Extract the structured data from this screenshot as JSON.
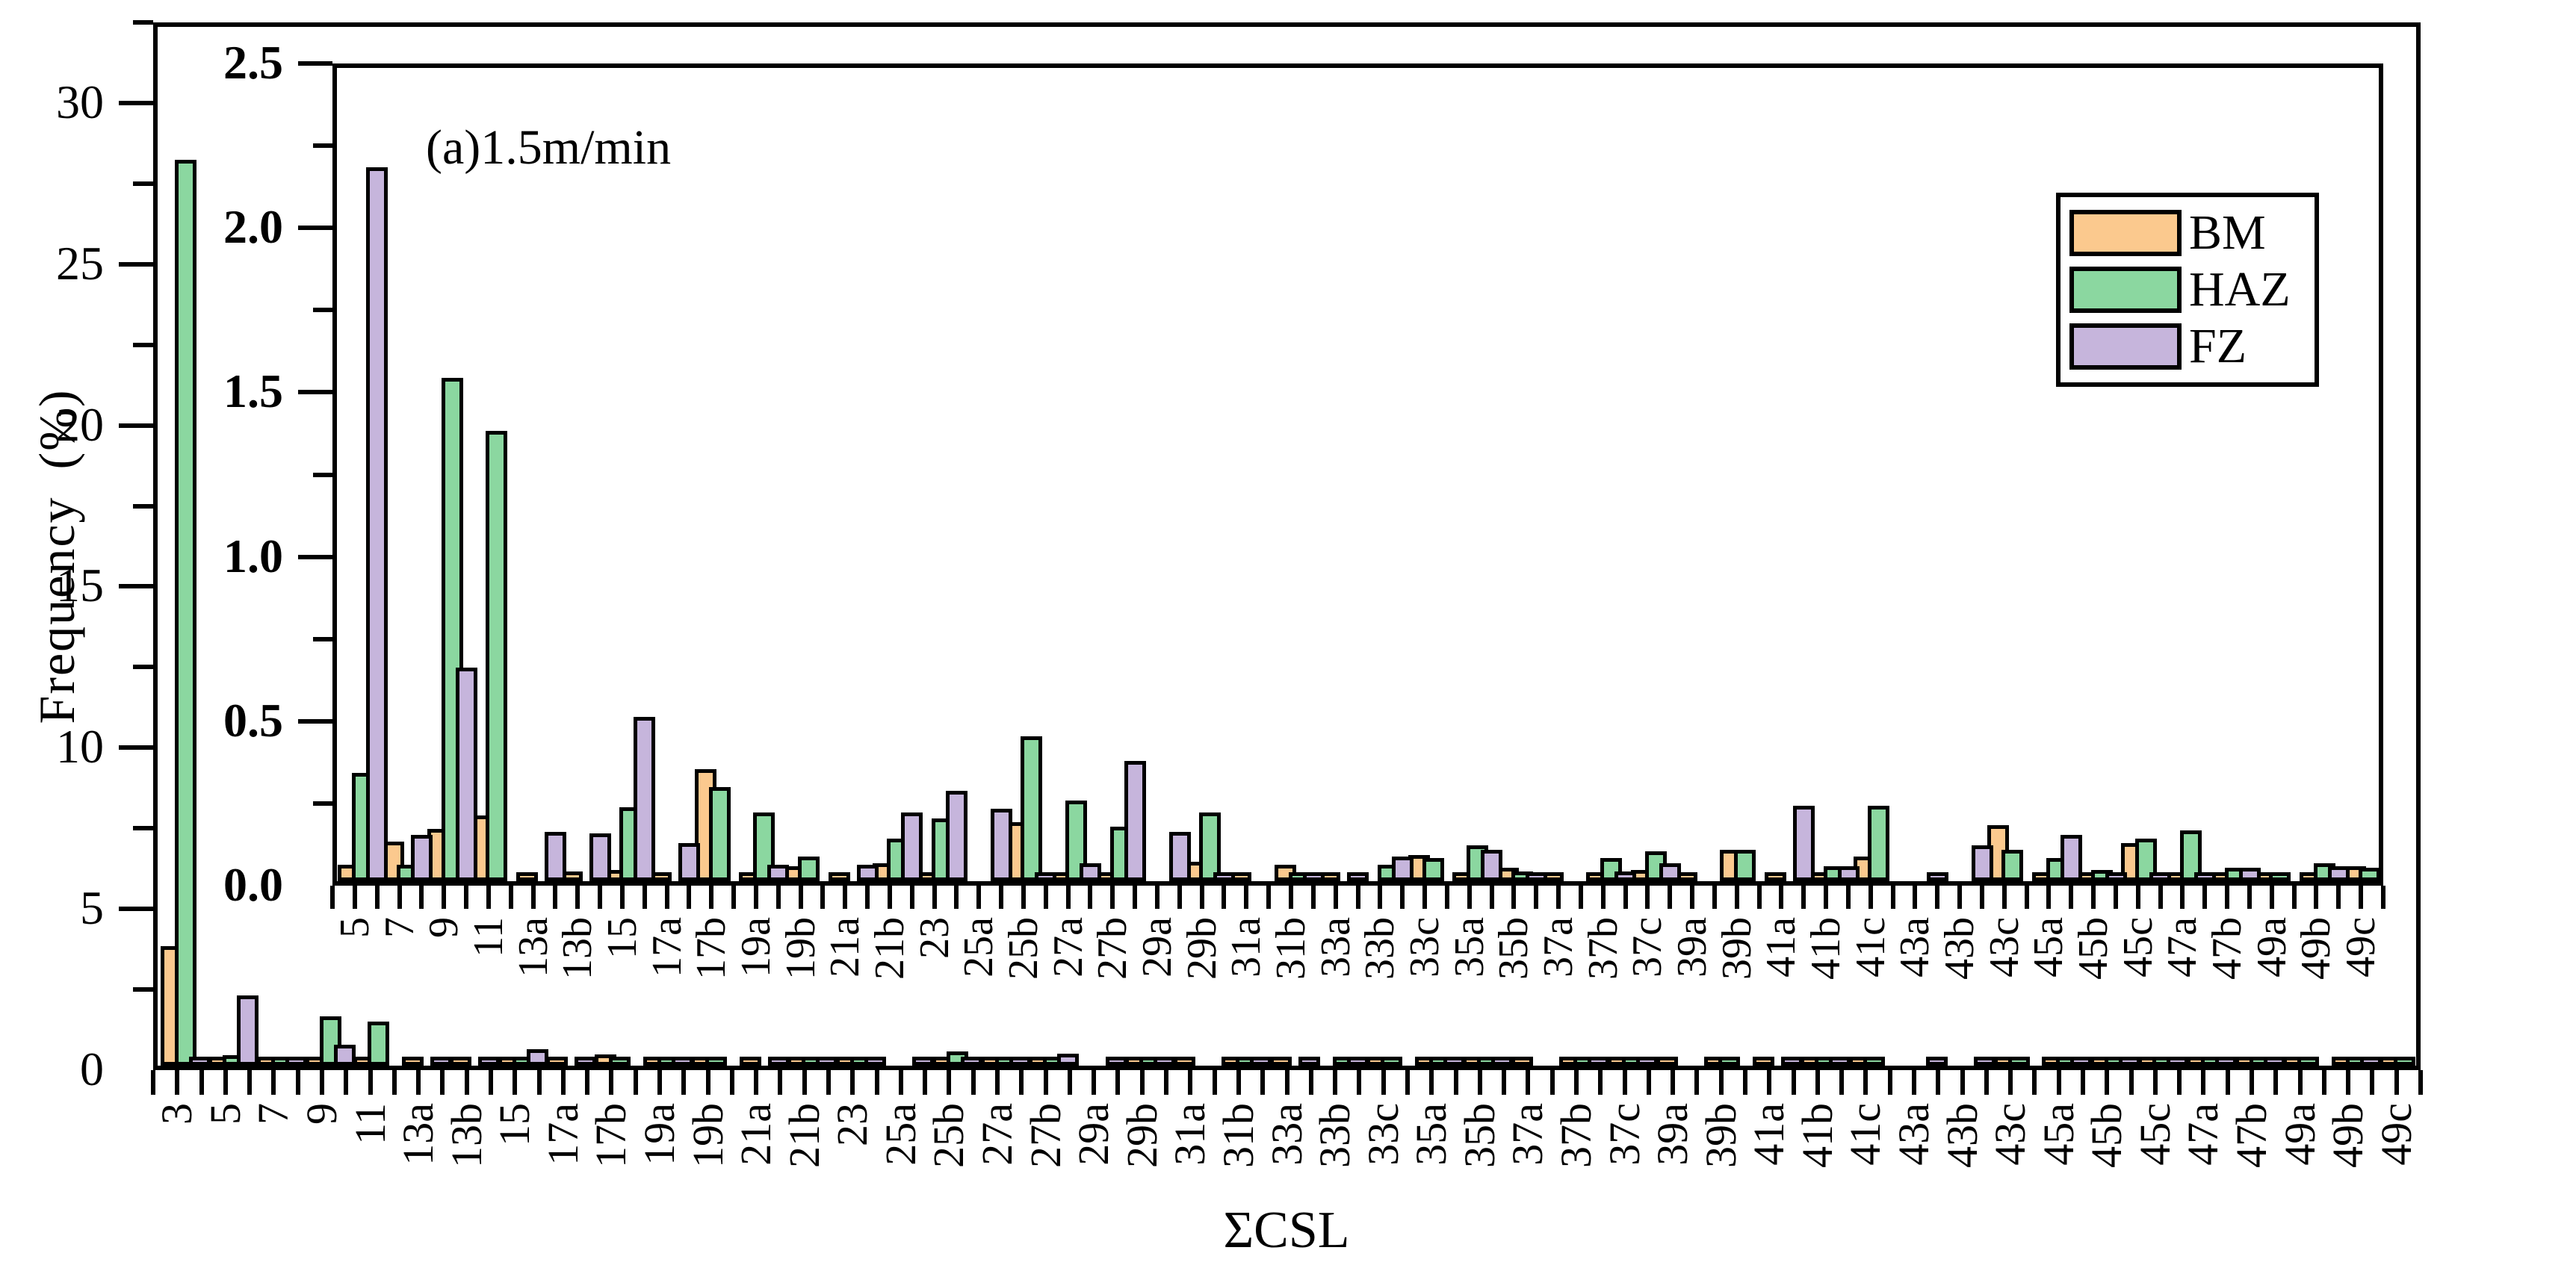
{
  "figure": {
    "annotation": "(a)1.5m/min",
    "x_axis_title": "ΣCSL",
    "y_axis_title": "Frequency (%)"
  },
  "legend": {
    "entries": [
      {
        "label": "BM",
        "color": "#fbc98e"
      },
      {
        "label": "HAZ",
        "color": "#8bd7a0"
      },
      {
        "label": "FZ",
        "color": "#c6b5dc"
      }
    ],
    "position": "upper-right"
  },
  "chart_data": [
    {
      "name": "main",
      "type": "bar",
      "title": "",
      "xlabel": "ΣCSL",
      "ylabel": "Frequency (%)",
      "ylim": [
        0,
        32.5
      ],
      "grid": false,
      "yticks": {
        "values": [
          0,
          5,
          10,
          15,
          20,
          25,
          30
        ],
        "labels": [
          "0",
          "5",
          "10",
          "15",
          "20",
          "25",
          "30"
        ],
        "minor_step": 2.5
      },
      "categories": [
        "3",
        "5",
        "7",
        "9",
        "11",
        "13a",
        "13b",
        "15",
        "17a",
        "17b",
        "19a",
        "19b",
        "21a",
        "21b",
        "23",
        "25a",
        "25b",
        "27a",
        "27b",
        "29a",
        "29b",
        "31a",
        "31b",
        "33a",
        "33b",
        "33c",
        "35a",
        "35b",
        "37a",
        "37b",
        "37c",
        "39a",
        "39b",
        "41a",
        "41b",
        "41c",
        "43a",
        "43b",
        "43c",
        "45a",
        "45b",
        "45c",
        "47a",
        "47b",
        "49a",
        "49b",
        "49c"
      ],
      "series": [
        {
          "name": "BM",
          "values": [
            3.7,
            0.05,
            0.12,
            0.16,
            0.2,
            0.01,
            0.03,
            0.035,
            0.005,
            0.34,
            0.02,
            0.045,
            0.01,
            0.055,
            0.02,
            0,
            0.18,
            0.015,
            0.01,
            0,
            0.06,
            0.005,
            0.05,
            0.005,
            0,
            0.08,
            0.015,
            0.04,
            0.005,
            0.005,
            0.035,
            0.005,
            0.095,
            0.005,
            0.01,
            0.075,
            0,
            0,
            0.17,
            0.005,
            0.015,
            0.115,
            0.025,
            0.01,
            0.005,
            0.005,
            0.045
          ]
        },
        {
          "name": "HAZ",
          "values": [
            28.1,
            0.33,
            0.05,
            1.53,
            1.37,
            0,
            0,
            0.225,
            0,
            0.285,
            0.21,
            0.075,
            0,
            0.13,
            0.19,
            0,
            0.44,
            0.245,
            0.165,
            0,
            0.21,
            0,
            0.015,
            0,
            0.05,
            0.07,
            0.11,
            0.03,
            0,
            0.07,
            0.09,
            0,
            0.095,
            0,
            0.045,
            0.23,
            0,
            0,
            0.095,
            0.07,
            0.035,
            0.13,
            0.155,
            0.04,
            0.005,
            0.055,
            0.04
          ]
        },
        {
          "name": "FZ",
          "values": [
            0.15,
            2.17,
            0.14,
            0.65,
            0,
            0.15,
            0.145,
            0.5,
            0.115,
            0,
            0.05,
            0,
            0.05,
            0.21,
            0.275,
            0.22,
            0.005,
            0.055,
            0.365,
            0.15,
            0.015,
            0,
            0.005,
            0.025,
            0.075,
            0,
            0.095,
            0.01,
            0,
            0.03,
            0.055,
            0,
            0,
            0.23,
            0.045,
            0,
            0.02,
            0.11,
            0,
            0.14,
            0.025,
            0.01,
            0.02,
            0.04,
            0,
            0.045,
            0
          ]
        }
      ]
    },
    {
      "name": "inset-zoom",
      "type": "bar",
      "title": "",
      "xlabel": "",
      "ylabel": "",
      "annotation": "(a)1.5m/min",
      "ylim": [
        0,
        2.5
      ],
      "grid": false,
      "yticks": {
        "values": [
          0,
          0.5,
          1.0,
          1.5,
          2.0,
          2.5
        ],
        "labels": [
          "0.0",
          "0.5",
          "1.0",
          "1.5",
          "2.0",
          "2.5"
        ],
        "minor_step": 0.25
      },
      "categories": [
        "5",
        "7",
        "9",
        "11",
        "13a",
        "13b",
        "15",
        "17a",
        "17b",
        "19a",
        "19b",
        "21a",
        "21b",
        "23",
        "25a",
        "25b",
        "27a",
        "27b",
        "29a",
        "29b",
        "31a",
        "31b",
        "33a",
        "33b",
        "33c",
        "35a",
        "35b",
        "37a",
        "37b",
        "37c",
        "39a",
        "39b",
        "41a",
        "41b",
        "41c",
        "43a",
        "43b",
        "43c",
        "45a",
        "45b",
        "45c",
        "47a",
        "47b",
        "49a",
        "49b",
        "49c"
      ],
      "series": [
        {
          "name": "BM",
          "values": [
            0.05,
            0.12,
            0.16,
            0.2,
            0.01,
            0.03,
            0.035,
            0.005,
            0.34,
            0.02,
            0.045,
            0.01,
            0.055,
            0.02,
            0,
            0.18,
            0.015,
            0.01,
            0,
            0.06,
            0.005,
            0.05,
            0.005,
            0,
            0.08,
            0.015,
            0.04,
            0.005,
            0.005,
            0.035,
            0.005,
            0.095,
            0.005,
            0.01,
            0.075,
            0,
            0,
            0.17,
            0.005,
            0.015,
            0.115,
            0.025,
            0.01,
            0.005,
            0.005,
            0.045
          ]
        },
        {
          "name": "HAZ",
          "values": [
            0.33,
            0.05,
            1.53,
            1.37,
            0,
            0,
            0.225,
            0,
            0.285,
            0.21,
            0.075,
            0,
            0.13,
            0.19,
            0,
            0.44,
            0.245,
            0.165,
            0,
            0.21,
            0,
            0.015,
            0,
            0.05,
            0.07,
            0.11,
            0.03,
            0,
            0.07,
            0.09,
            0,
            0.095,
            0,
            0.045,
            0.23,
            0,
            0,
            0.095,
            0.07,
            0.035,
            0.13,
            0.155,
            0.04,
            0.005,
            0.055,
            0.04
          ]
        },
        {
          "name": "FZ",
          "values": [
            2.17,
            0.14,
            0.65,
            0,
            0.15,
            0.145,
            0.5,
            0.115,
            0,
            0.05,
            0,
            0.05,
            0.21,
            0.275,
            0.22,
            0.005,
            0.055,
            0.365,
            0.15,
            0.015,
            0,
            0.005,
            0.025,
            0.075,
            0,
            0.095,
            0.01,
            0,
            0.03,
            0.055,
            0,
            0,
            0.23,
            0.045,
            0,
            0.02,
            0.11,
            0,
            0.14,
            0.025,
            0.01,
            0.02,
            0.04,
            0,
            0.045,
            0
          ]
        }
      ]
    }
  ]
}
